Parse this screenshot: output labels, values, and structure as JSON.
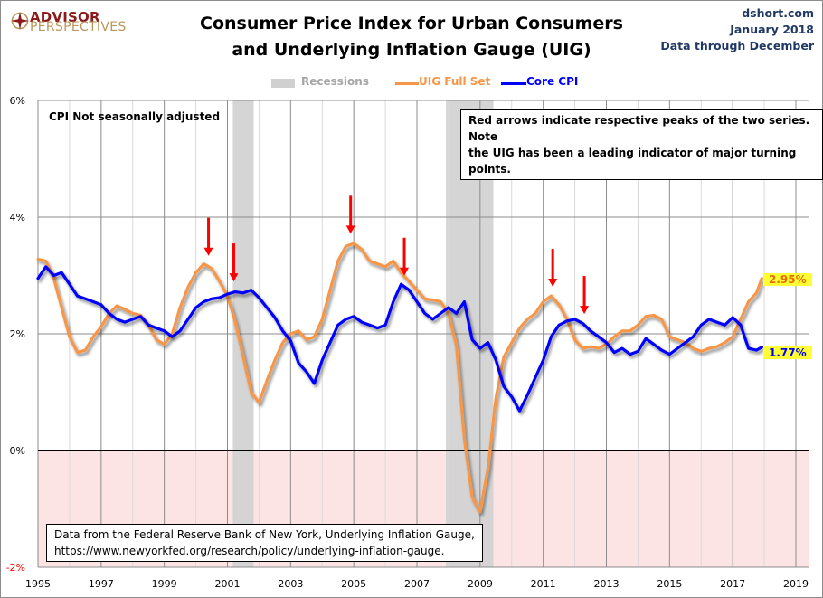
{
  "header": {
    "logo_line1": "ADVISOR",
    "logo_line2": "PERSPECTIVES",
    "title_line1": "Consumer Price Index for Urban Consumers",
    "title_line2": "and Underlying Inflation Gauge (UIG)",
    "source_site": "dshort.com",
    "source_date": "January 2018",
    "source_note": "Data through December"
  },
  "annotations": {
    "top_left_note": "CPI Not seasonally adjusted",
    "arrow_note_line1": "Red arrows indicate respective peaks of the two series. Note",
    "arrow_note_line2": "the UIG has been a leading indicator of major turning points.",
    "source_line1": "Data from the Federal Reserve Bank of New York, Underlying Inflation Gauge,",
    "source_line2": "https://www.newyorkfed.org/research/policy/underlying-inflation-gauge.",
    "uig_last_label": "2.95%",
    "cpi_last_label": "1.77%"
  },
  "colors": {
    "uig": "#f79646",
    "core_cpi": "#0000ff",
    "recession": "#d0d0d0",
    "negative_zone": "#fde4e4",
    "arrow": "#ff0000",
    "label_highlight": "#ffff33",
    "uig_label_text": "#e46c0a",
    "cpi_label_text": "#0000ff",
    "negative_tick": "#ff0000",
    "source_text": "#1f3864",
    "logo_red": "#8b1a1a",
    "logo_gold": "#b8975a"
  },
  "chart_data": {
    "type": "line",
    "title": "Consumer Price Index for Urban Consumers and Underlying Inflation Gauge (UIG)",
    "xlabel": "",
    "ylabel": "",
    "xlim": [
      1995,
      2019.5
    ],
    "ylim": [
      -2,
      6
    ],
    "grid": true,
    "legend_position": "top-center",
    "y_ticks": [
      {
        "value": 6,
        "label": "6%"
      },
      {
        "value": 4,
        "label": "4%"
      },
      {
        "value": 2,
        "label": "2%"
      },
      {
        "value": 0,
        "label": "0%"
      },
      {
        "value": -2,
        "label": "-2%"
      }
    ],
    "x_ticks": [
      {
        "value": 1995,
        "label": "1995"
      },
      {
        "value": 1997,
        "label": "1997"
      },
      {
        "value": 1999,
        "label": "1999"
      },
      {
        "value": 2001,
        "label": "2001"
      },
      {
        "value": 2003,
        "label": "2003"
      },
      {
        "value": 2005,
        "label": "2005"
      },
      {
        "value": 2007,
        "label": "2007"
      },
      {
        "value": 2009,
        "label": "2009"
      },
      {
        "value": 2011,
        "label": "2011"
      },
      {
        "value": 2013,
        "label": "2013"
      },
      {
        "value": 2015,
        "label": "2015"
      },
      {
        "value": 2017,
        "label": "2017"
      },
      {
        "value": 2019,
        "label": "2019"
      }
    ],
    "legend": [
      {
        "name": "Recessions",
        "kind": "area"
      },
      {
        "name": "UIG Full Set",
        "kind": "line"
      },
      {
        "name": "Core CPI",
        "kind": "line"
      }
    ],
    "recessions": [
      {
        "start": 2001.17,
        "end": 2001.83
      },
      {
        "start": 2007.92,
        "end": 2009.42
      }
    ],
    "series": [
      {
        "name": "UIG Full Set",
        "x": [
          1995.0,
          1995.25,
          1995.5,
          1995.75,
          1996.0,
          1996.25,
          1996.5,
          1996.75,
          1997.0,
          1997.25,
          1997.5,
          1997.75,
          1998.0,
          1998.25,
          1998.5,
          1998.75,
          1999.0,
          1999.25,
          1999.5,
          1999.75,
          2000.0,
          2000.25,
          2000.5,
          2000.75,
          2001.0,
          2001.25,
          2001.5,
          2001.75,
          2002.0,
          2002.25,
          2002.5,
          2002.75,
          2003.0,
          2003.25,
          2003.5,
          2003.75,
          2004.0,
          2004.25,
          2004.5,
          2004.75,
          2005.0,
          2005.25,
          2005.5,
          2005.75,
          2006.0,
          2006.25,
          2006.5,
          2006.75,
          2007.0,
          2007.25,
          2007.5,
          2007.75,
          2008.0,
          2008.25,
          2008.5,
          2008.75,
          2009.0,
          2009.25,
          2009.5,
          2009.75,
          2010.0,
          2010.25,
          2010.5,
          2010.75,
          2011.0,
          2011.25,
          2011.5,
          2011.75,
          2012.0,
          2012.25,
          2012.5,
          2012.75,
          2013.0,
          2013.25,
          2013.5,
          2013.75,
          2014.0,
          2014.25,
          2014.5,
          2014.75,
          2015.0,
          2015.25,
          2015.5,
          2015.75,
          2016.0,
          2016.25,
          2016.5,
          2016.75,
          2017.0,
          2017.25,
          2017.5,
          2017.75,
          2017.92
        ],
        "values": [
          3.28,
          3.25,
          2.95,
          2.45,
          1.95,
          1.68,
          1.72,
          1.95,
          2.12,
          2.35,
          2.48,
          2.42,
          2.35,
          2.32,
          2.15,
          1.9,
          1.82,
          2.0,
          2.45,
          2.8,
          3.05,
          3.2,
          3.12,
          2.9,
          2.65,
          2.2,
          1.6,
          1.0,
          0.82,
          1.2,
          1.55,
          1.85,
          2.0,
          2.05,
          1.9,
          1.95,
          2.25,
          2.75,
          3.25,
          3.5,
          3.55,
          3.45,
          3.25,
          3.2,
          3.15,
          3.25,
          3.05,
          2.9,
          2.75,
          2.6,
          2.58,
          2.55,
          2.35,
          1.8,
          0.2,
          -0.8,
          -1.05,
          -0.3,
          0.9,
          1.6,
          1.85,
          2.1,
          2.25,
          2.35,
          2.55,
          2.65,
          2.5,
          2.25,
          1.9,
          1.75,
          1.78,
          1.75,
          1.82,
          1.95,
          2.05,
          2.05,
          2.15,
          2.3,
          2.32,
          2.25,
          1.95,
          1.9,
          1.85,
          1.75,
          1.7,
          1.75,
          1.78,
          1.85,
          1.95,
          2.25,
          2.55,
          2.7,
          2.95
        ]
      },
      {
        "name": "Core CPI",
        "x": [
          1995.0,
          1995.25,
          1995.5,
          1995.75,
          1996.0,
          1996.25,
          1996.5,
          1996.75,
          1997.0,
          1997.25,
          1997.5,
          1997.75,
          1998.0,
          1998.25,
          1998.5,
          1998.75,
          1999.0,
          1999.25,
          1999.5,
          1999.75,
          2000.0,
          2000.25,
          2000.5,
          2000.75,
          2001.0,
          2001.25,
          2001.5,
          2001.75,
          2002.0,
          2002.25,
          2002.5,
          2002.75,
          2003.0,
          2003.25,
          2003.5,
          2003.75,
          2004.0,
          2004.25,
          2004.5,
          2004.75,
          2005.0,
          2005.25,
          2005.5,
          2005.75,
          2006.0,
          2006.25,
          2006.5,
          2006.75,
          2007.0,
          2007.25,
          2007.5,
          2007.75,
          2008.0,
          2008.25,
          2008.5,
          2008.75,
          2009.0,
          2009.25,
          2009.5,
          2009.75,
          2010.0,
          2010.25,
          2010.5,
          2010.75,
          2011.0,
          2011.25,
          2011.5,
          2011.75,
          2012.0,
          2012.25,
          2012.5,
          2012.75,
          2013.0,
          2013.25,
          2013.5,
          2013.75,
          2014.0,
          2014.25,
          2014.5,
          2014.75,
          2015.0,
          2015.25,
          2015.5,
          2015.75,
          2016.0,
          2016.25,
          2016.5,
          2016.75,
          2017.0,
          2017.25,
          2017.5,
          2017.75,
          2017.92
        ],
        "values": [
          2.95,
          3.15,
          3.0,
          3.05,
          2.85,
          2.65,
          2.6,
          2.55,
          2.5,
          2.35,
          2.25,
          2.2,
          2.25,
          2.3,
          2.15,
          2.1,
          2.05,
          1.95,
          2.05,
          2.25,
          2.45,
          2.55,
          2.6,
          2.62,
          2.68,
          2.72,
          2.7,
          2.75,
          2.62,
          2.45,
          2.28,
          2.05,
          1.88,
          1.5,
          1.35,
          1.15,
          1.55,
          1.85,
          2.15,
          2.25,
          2.3,
          2.2,
          2.15,
          2.1,
          2.15,
          2.55,
          2.85,
          2.75,
          2.55,
          2.35,
          2.25,
          2.35,
          2.45,
          2.35,
          2.55,
          1.9,
          1.75,
          1.85,
          1.55,
          1.1,
          0.92,
          0.68,
          0.95,
          1.25,
          1.55,
          1.95,
          2.15,
          2.22,
          2.25,
          2.18,
          2.05,
          1.95,
          1.85,
          1.68,
          1.75,
          1.65,
          1.7,
          1.92,
          1.82,
          1.72,
          1.65,
          1.75,
          1.85,
          1.95,
          2.15,
          2.25,
          2.2,
          2.15,
          2.28,
          2.15,
          1.75,
          1.72,
          1.77
        ]
      }
    ],
    "peak_arrows": [
      {
        "series": "UIG Full Set",
        "x": 2000.4
      },
      {
        "series": "Core CPI",
        "x": 2001.2
      },
      {
        "series": "UIG Full Set",
        "x": 2004.9
      },
      {
        "series": "Core CPI",
        "x": 2006.6
      },
      {
        "series": "UIG Full Set",
        "x": 2011.3
      },
      {
        "series": "Core CPI",
        "x": 2012.3
      }
    ],
    "last_values": {
      "UIG Full Set": 2.95,
      "Core CPI": 1.77
    }
  }
}
